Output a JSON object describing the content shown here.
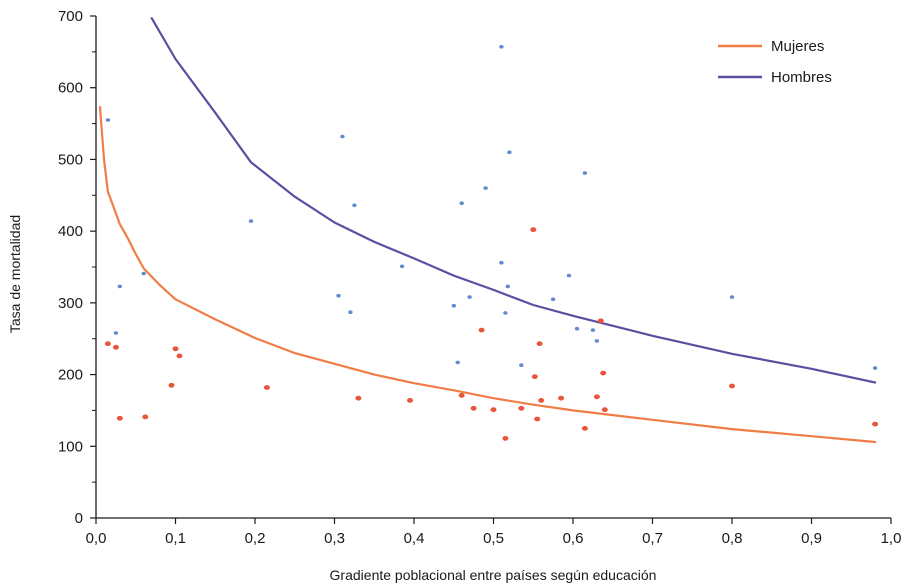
{
  "chart_data": {
    "type": "scatter",
    "title": "",
    "xlabel": "Gradiente poblacional entre países según educación",
    "ylabel": "Tasa de mortalidad",
    "xlim": [
      0,
      1
    ],
    "ylim": [
      0,
      700
    ],
    "x_ticks": [
      "0,0",
      "0,1",
      "0,2",
      "0,3",
      "0,4",
      "0,5",
      "0,6",
      "0,7",
      "0,8",
      "0,9",
      "1,0"
    ],
    "y_ticks": [
      "0",
      "100",
      "200",
      "300",
      "400",
      "500",
      "600",
      "700"
    ],
    "grid": false,
    "legend_position": "top-right",
    "series": [
      {
        "name": "Mujeres",
        "color": "#f07d45",
        "point_color": "#e8553a",
        "curve": [
          [
            0.005,
            573
          ],
          [
            0.01,
            500
          ],
          [
            0.015,
            455
          ],
          [
            0.02,
            440
          ],
          [
            0.03,
            410
          ],
          [
            0.04,
            390
          ],
          [
            0.05,
            368
          ],
          [
            0.06,
            348
          ],
          [
            0.08,
            325
          ],
          [
            0.1,
            305
          ],
          [
            0.15,
            277
          ],
          [
            0.2,
            251
          ],
          [
            0.25,
            230
          ],
          [
            0.3,
            215
          ],
          [
            0.35,
            200
          ],
          [
            0.4,
            188
          ],
          [
            0.45,
            178
          ],
          [
            0.5,
            167
          ],
          [
            0.55,
            158
          ],
          [
            0.6,
            150
          ],
          [
            0.7,
            137
          ],
          [
            0.8,
            124
          ],
          [
            0.9,
            114
          ],
          [
            0.98,
            106
          ]
        ],
        "points": [
          [
            0.015,
            243
          ],
          [
            0.025,
            238
          ],
          [
            0.03,
            139
          ],
          [
            0.062,
            141
          ],
          [
            0.095,
            185
          ],
          [
            0.1,
            236
          ],
          [
            0.105,
            226
          ],
          [
            0.215,
            182
          ],
          [
            0.33,
            167
          ],
          [
            0.395,
            164
          ],
          [
            0.46,
            171
          ],
          [
            0.475,
            153
          ],
          [
            0.485,
            262
          ],
          [
            0.5,
            151
          ],
          [
            0.515,
            111
          ],
          [
            0.535,
            153
          ],
          [
            0.55,
            402
          ],
          [
            0.552,
            197
          ],
          [
            0.555,
            138
          ],
          [
            0.558,
            243
          ],
          [
            0.56,
            164
          ],
          [
            0.585,
            167
          ],
          [
            0.615,
            125
          ],
          [
            0.63,
            169
          ],
          [
            0.635,
            275
          ],
          [
            0.638,
            202
          ],
          [
            0.64,
            151
          ],
          [
            0.8,
            184
          ],
          [
            0.98,
            131
          ]
        ]
      },
      {
        "name": "Hombres",
        "color": "#5a4fa0",
        "point_color": "#4f7fc9",
        "curve": [
          [
            0.07,
            697
          ],
          [
            0.1,
            640
          ],
          [
            0.15,
            565
          ],
          [
            0.195,
            496
          ],
          [
            0.25,
            448
          ],
          [
            0.3,
            412
          ],
          [
            0.35,
            385
          ],
          [
            0.4,
            362
          ],
          [
            0.45,
            338
          ],
          [
            0.5,
            318
          ],
          [
            0.55,
            297
          ],
          [
            0.6,
            282
          ],
          [
            0.65,
            268
          ],
          [
            0.7,
            254
          ],
          [
            0.8,
            229
          ],
          [
            0.9,
            208
          ],
          [
            0.98,
            189
          ]
        ],
        "points": [
          [
            0.015,
            555
          ],
          [
            0.025,
            258
          ],
          [
            0.03,
            323
          ],
          [
            0.06,
            341
          ],
          [
            0.195,
            414
          ],
          [
            0.305,
            310
          ],
          [
            0.31,
            532
          ],
          [
            0.32,
            287
          ],
          [
            0.325,
            436
          ],
          [
            0.385,
            351
          ],
          [
            0.45,
            296
          ],
          [
            0.455,
            217
          ],
          [
            0.46,
            439
          ],
          [
            0.47,
            308
          ],
          [
            0.49,
            460
          ],
          [
            0.51,
            657
          ],
          [
            0.51,
            356
          ],
          [
            0.515,
            286
          ],
          [
            0.518,
            323
          ],
          [
            0.52,
            510
          ],
          [
            0.535,
            213
          ],
          [
            0.575,
            305
          ],
          [
            0.595,
            338
          ],
          [
            0.605,
            264
          ],
          [
            0.615,
            481
          ],
          [
            0.625,
            262
          ],
          [
            0.63,
            247
          ],
          [
            0.8,
            308
          ],
          [
            0.98,
            209
          ]
        ]
      }
    ]
  }
}
